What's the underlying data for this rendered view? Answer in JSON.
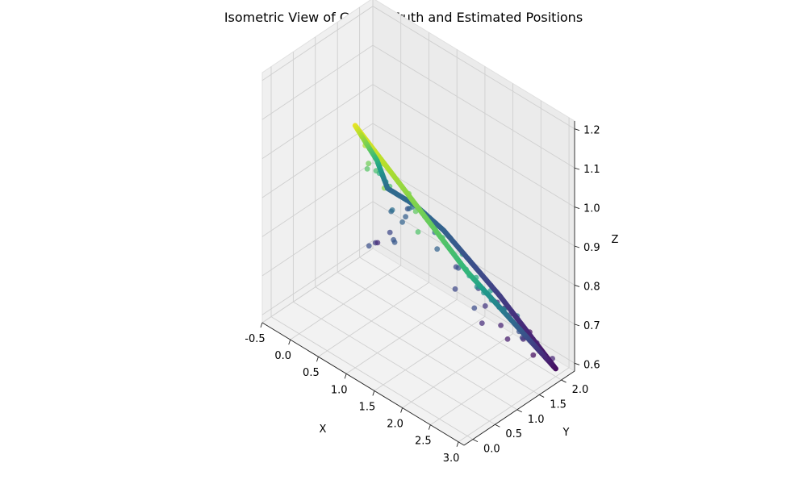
{
  "chart_data": {
    "type": "scatter",
    "projection": "3d-isometric",
    "title": "Isometric View of Ground Truth and Estimated Positions",
    "xlabel": "X",
    "ylabel": "Y",
    "zlabel": "Z",
    "xlim": [
      -0.5,
      3.1
    ],
    "ylim": [
      -0.2,
      2.3
    ],
    "zlim": [
      0.58,
      1.22
    ],
    "x_ticks": [
      "-0.5",
      "0.0",
      "0.5",
      "1.0",
      "1.5",
      "2.0",
      "2.5",
      "3.0"
    ],
    "y_ticks": [
      "0.0",
      "0.5",
      "1.0",
      "1.5",
      "2.0"
    ],
    "z_ticks": [
      "0.6",
      "0.7",
      "0.8",
      "0.9",
      "1.0",
      "1.1",
      "1.2"
    ],
    "grid": true,
    "colormap": "viridis",
    "color_by": "z",
    "series": [
      {
        "role": "ground-truth-path",
        "points": [
          {
            "x": 0.0,
            "y": 2.0,
            "z": 0.8
          },
          {
            "x": 0.5,
            "y": 2.0,
            "z": 0.8
          },
          {
            "x": 1.0,
            "y": 2.0,
            "z": 0.78
          },
          {
            "x": 1.5,
            "y": 2.0,
            "z": 0.74
          },
          {
            "x": 2.0,
            "y": 2.0,
            "z": 0.7
          },
          {
            "x": 2.5,
            "y": 2.0,
            "z": 0.65
          },
          {
            "x": 3.0,
            "y": 2.0,
            "z": 0.6
          },
          {
            "x": 3.0,
            "y": 1.5,
            "z": 0.7
          },
          {
            "x": 3.0,
            "y": 1.0,
            "z": 0.8
          },
          {
            "x": 3.0,
            "y": 0.5,
            "z": 0.9
          },
          {
            "x": 3.0,
            "y": 0.0,
            "z": 1.0
          },
          {
            "x": 2.5,
            "y": 0.0,
            "z": 1.05
          },
          {
            "x": 2.0,
            "y": 0.0,
            "z": 1.1
          },
          {
            "x": 1.5,
            "y": 0.0,
            "z": 1.15
          },
          {
            "x": 1.0,
            "y": 0.0,
            "z": 1.2
          },
          {
            "x": 0.8,
            "y": 0.5,
            "z": 1.1
          },
          {
            "x": 0.6,
            "y": 1.0,
            "z": 1.0
          },
          {
            "x": 0.3,
            "y": 1.5,
            "z": 0.9
          },
          {
            "x": 0.0,
            "y": 2.0,
            "z": 0.8
          }
        ]
      },
      {
        "role": "estimated-positions",
        "points": [
          {
            "x": 0.5,
            "y": 1.7,
            "z": 0.78
          },
          {
            "x": 0.6,
            "y": 1.8,
            "z": 0.82
          },
          {
            "x": 0.4,
            "y": 1.9,
            "z": 0.77
          },
          {
            "x": 0.7,
            "y": 1.6,
            "z": 0.84
          },
          {
            "x": 0.5,
            "y": 1.5,
            "z": 0.75
          },
          {
            "x": 0.3,
            "y": 1.7,
            "z": 0.79
          },
          {
            "x": 0.8,
            "y": 1.9,
            "z": 0.8
          },
          {
            "x": 0.6,
            "y": 1.4,
            "z": 0.76
          },
          {
            "x": 0.2,
            "y": 1.8,
            "z": 0.72
          },
          {
            "x": 0.9,
            "y": 1.7,
            "z": 0.83
          },
          {
            "x": 1.0,
            "y": 1.8,
            "z": 0.79
          },
          {
            "x": 0.4,
            "y": 1.6,
            "z": 0.81
          },
          {
            "x": 0.1,
            "y": 1.6,
            "z": 0.7
          },
          {
            "x": -0.1,
            "y": 1.9,
            "z": 0.66
          },
          {
            "x": 0.3,
            "y": 1.2,
            "z": 0.74
          },
          {
            "x": 1.3,
            "y": 1.9,
            "z": 0.72
          },
          {
            "x": 1.5,
            "y": 1.7,
            "z": 0.75
          },
          {
            "x": 1.7,
            "y": 1.9,
            "z": 0.7
          },
          {
            "x": 1.9,
            "y": 1.8,
            "z": 0.68
          },
          {
            "x": 2.0,
            "y": 2.1,
            "z": 0.66
          },
          {
            "x": 2.1,
            "y": 1.9,
            "z": 0.64
          },
          {
            "x": 2.2,
            "y": 2.0,
            "z": 0.67
          },
          {
            "x": 2.3,
            "y": 1.8,
            "z": 0.63
          },
          {
            "x": 2.4,
            "y": 2.1,
            "z": 0.62
          },
          {
            "x": 2.5,
            "y": 1.9,
            "z": 0.64
          },
          {
            "x": 2.6,
            "y": 2.0,
            "z": 0.6
          },
          {
            "x": 2.3,
            "y": 2.3,
            "z": 0.61
          },
          {
            "x": 1.8,
            "y": 2.2,
            "z": 0.65
          },
          {
            "x": 2.0,
            "y": 1.6,
            "z": 0.66
          },
          {
            "x": 1.6,
            "y": 1.5,
            "z": 0.72
          },
          {
            "x": 2.8,
            "y": 1.5,
            "z": 0.7
          },
          {
            "x": 2.9,
            "y": 1.3,
            "z": 0.74
          },
          {
            "x": 3.0,
            "y": 1.2,
            "z": 0.76
          },
          {
            "x": 2.7,
            "y": 1.1,
            "z": 0.8
          },
          {
            "x": 3.1,
            "y": 1.0,
            "z": 0.82
          },
          {
            "x": 2.8,
            "y": 0.8,
            "z": 0.85
          },
          {
            "x": 3.0,
            "y": 0.6,
            "z": 0.88
          },
          {
            "x": 2.9,
            "y": 0.5,
            "z": 0.9
          },
          {
            "x": 3.1,
            "y": 0.4,
            "z": 0.93
          },
          {
            "x": 2.8,
            "y": 0.3,
            "z": 0.95
          },
          {
            "x": 3.0,
            "y": 0.2,
            "z": 0.97
          },
          {
            "x": 2.9,
            "y": 0.1,
            "z": 0.99
          },
          {
            "x": 3.1,
            "y": 0.7,
            "z": 0.86
          },
          {
            "x": 2.7,
            "y": 0.6,
            "z": 0.89
          },
          {
            "x": 3.0,
            "y": 0.9,
            "z": 0.84
          },
          {
            "x": 2.4,
            "y": 0.2,
            "z": 1.02
          },
          {
            "x": 2.2,
            "y": -0.1,
            "z": 1.04
          },
          {
            "x": 2.0,
            "y": 0.1,
            "z": 1.06
          },
          {
            "x": 1.8,
            "y": 0.2,
            "z": 1.08
          },
          {
            "x": 1.6,
            "y": -0.1,
            "z": 1.1
          },
          {
            "x": 1.4,
            "y": 0.1,
            "z": 1.13
          },
          {
            "x": 1.2,
            "y": 0.2,
            "z": 1.12
          },
          {
            "x": 1.1,
            "y": 0.1,
            "z": 1.15
          },
          {
            "x": 1.0,
            "y": 0.3,
            "z": 1.08
          },
          {
            "x": 0.9,
            "y": 0.6,
            "z": 1.03
          },
          {
            "x": 0.8,
            "y": 0.8,
            "z": 1.0
          },
          {
            "x": 0.7,
            "y": 1.0,
            "z": 0.97
          },
          {
            "x": 0.6,
            "y": 1.2,
            "z": 0.93
          },
          {
            "x": 0.9,
            "y": 0.4,
            "z": 1.05
          },
          {
            "x": 1.3,
            "y": 0.4,
            "z": 1.04
          },
          {
            "x": 2.6,
            "y": 0.4,
            "z": 0.98
          },
          {
            "x": 2.9,
            "y": 1.7,
            "z": 0.68
          },
          {
            "x": 3.1,
            "y": 1.8,
            "z": 0.65
          },
          {
            "x": 2.1,
            "y": 1.3,
            "z": 0.73
          },
          {
            "x": 1.2,
            "y": 1.6,
            "z": 0.78
          },
          {
            "x": 0.2,
            "y": 2.2,
            "z": 0.75
          }
        ]
      }
    ]
  }
}
